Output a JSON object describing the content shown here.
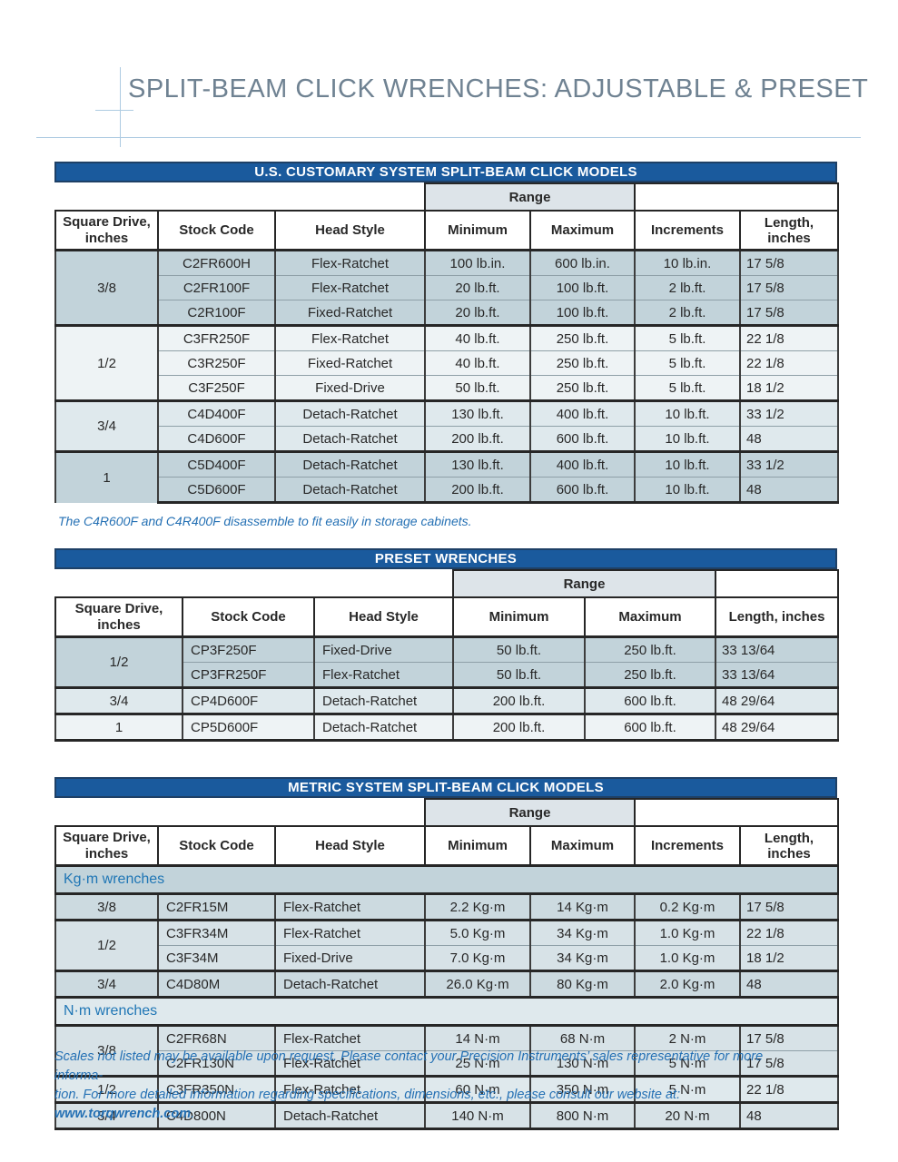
{
  "page": {
    "title": "SPLIT-BEAM CLICK WRENCHES: ADJUSTABLE & PRESET"
  },
  "colors": {
    "banner_blue": "#1a5a9d",
    "accent_blue": "#2470b4",
    "title_gray": "#6f8292",
    "rule_blue": "#aecbe2",
    "header_gray": "#dde4e9",
    "row_dark": "#c2d3da",
    "row_light": "#eef3f5"
  },
  "tables": [
    {
      "banner": "U.S. CUSTOMARY SYSTEM SPLIT-BEAM CLICK MODELS",
      "range_label": "Range",
      "has_increments": true,
      "align": "center",
      "headers": {
        "drive": "Square Drive,\ninches",
        "stock": "Stock Code",
        "head": "Head Style",
        "min": "Minimum",
        "max": "Maximum",
        "inc": "Increments",
        "len": "Length, inches"
      },
      "note": "The C4R600F and C4R400F disassemble to fit easily in storage cabinets.",
      "sections": [
        {
          "label": "",
          "label_shade": "",
          "groups": [
            {
              "drive": "3/8",
              "shade": "dark",
              "rows": [
                {
                  "stock": "C2FR600H",
                  "head": "Flex-Ratchet",
                  "min": "100 lb.in.",
                  "max": "600 lb.in.",
                  "inc": "10 lb.in.",
                  "len": "17 5/8"
                },
                {
                  "stock": "C2FR100F",
                  "head": "Flex-Ratchet",
                  "min": "20 lb.ft.",
                  "max": "100 lb.ft.",
                  "inc": "2 lb.ft.",
                  "len": "17 5/8"
                },
                {
                  "stock": "C2R100F",
                  "head": "Fixed-Ratchet",
                  "min": "20 lb.ft.",
                  "max": "100 lb.ft.",
                  "inc": "2 lb.ft.",
                  "len": "17 5/8"
                }
              ]
            },
            {
              "drive": "1/2",
              "shade": "light",
              "rows": [
                {
                  "stock": "C3FR250F",
                  "head": "Flex-Ratchet",
                  "min": "40 lb.ft.",
                  "max": "250 lb.ft.",
                  "inc": "5 lb.ft.",
                  "len": "22 1/8"
                },
                {
                  "stock": "C3R250F",
                  "head": "Fixed-Ratchet",
                  "min": "40 lb.ft.",
                  "max": "250 lb.ft.",
                  "inc": "5 lb.ft.",
                  "len": "22 1/8"
                },
                {
                  "stock": "C3F250F",
                  "head": "Fixed-Drive",
                  "min": "50 lb.ft.",
                  "max": "250 lb.ft.",
                  "inc": "5 lb.ft.",
                  "len": "18 1/2"
                }
              ]
            },
            {
              "drive": "3/4",
              "shade": "mlight",
              "rows": [
                {
                  "stock": "C4D400F",
                  "head": "Detach-Ratchet",
                  "min": "130 lb.ft.",
                  "max": "400 lb.ft.",
                  "inc": "10 lb.ft.",
                  "len": "33 1/2"
                },
                {
                  "stock": "C4D600F",
                  "head": "Detach-Ratchet",
                  "min": "200 lb.ft.",
                  "max": "600 lb.ft.",
                  "inc": "10 lb.ft.",
                  "len": "48"
                }
              ]
            },
            {
              "drive": "1",
              "shade": "dark",
              "rows": [
                {
                  "stock": "C5D400F",
                  "head": "Detach-Ratchet",
                  "min": "130 lb.ft.",
                  "max": "400 lb.ft.",
                  "inc": "10 lb.ft.",
                  "len": "33 1/2"
                },
                {
                  "stock": "C5D600F",
                  "head": "Detach-Ratchet",
                  "min": "200 lb.ft.",
                  "max": "600 lb.ft.",
                  "inc": "10 lb.ft.",
                  "len": "48"
                }
              ]
            }
          ]
        }
      ]
    },
    {
      "banner": "PRESET WRENCHES",
      "range_label": "Range",
      "has_increments": false,
      "align": "left",
      "headers": {
        "drive": "Square Drive,\ninches",
        "stock": "Stock Code",
        "head": "Head Style",
        "min": "Minimum",
        "max": "Maximum",
        "len": "Length, inches"
      },
      "sections": [
        {
          "label": "",
          "label_shade": "",
          "groups": [
            {
              "drive": "1/2",
              "shade": "dark",
              "rows": [
                {
                  "stock": "CP3F250F",
                  "head": "Fixed-Drive",
                  "min": "50 lb.ft.",
                  "max": "250 lb.ft.",
                  "len": "33 13/64"
                },
                {
                  "stock": "CP3FR250F",
                  "head": "Flex-Ratchet",
                  "min": "50 lb.ft.",
                  "max": "250 lb.ft.",
                  "len": "33 13/64"
                }
              ]
            },
            {
              "drive": "3/4",
              "shade": "mlight",
              "rows": [
                {
                  "stock": "CP4D600F",
                  "head": "Detach-Ratchet",
                  "min": "200 lb.ft.",
                  "max": "600 lb.ft.",
                  "len": "48 29/64"
                }
              ]
            },
            {
              "drive": "1",
              "shade": "light",
              "rows": [
                {
                  "stock": "CP5D600F",
                  "head": "Detach-Ratchet",
                  "min": "200 lb.ft.",
                  "max": "600 lb.ft.",
                  "len": "48 29/64"
                }
              ]
            }
          ]
        }
      ]
    },
    {
      "banner": "METRIC SYSTEM SPLIT-BEAM CLICK MODELS",
      "range_label": "Range",
      "has_increments": true,
      "align": "left",
      "headers": {
        "drive": "Square Drive,\ninches",
        "stock": "Stock Code",
        "head": "Head Style",
        "min": "Minimum",
        "max": "Maximum",
        "inc": "Increments",
        "len": "Length, inches"
      },
      "sections": [
        {
          "label": "Kg·m wrenches",
          "label_shade": "dark",
          "groups": [
            {
              "drive": "3/8",
              "shade": "med",
              "rows": [
                {
                  "stock": "C2FR15M",
                  "head": "Flex-Ratchet",
                  "min": "2.2 Kg·m",
                  "max": "14 Kg·m",
                  "inc": "0.2 Kg·m",
                  "len": "17 5/8"
                }
              ]
            },
            {
              "drive": "1/2",
              "shade": "med2",
              "rows": [
                {
                  "stock": "C3FR34M",
                  "head": "Flex-Ratchet",
                  "min": "5.0 Kg·m",
                  "max": "34 Kg·m",
                  "inc": "1.0 Kg·m",
                  "len": "22 1/8"
                },
                {
                  "stock": "C3F34M",
                  "head": "Fixed-Drive",
                  "min": "7.0 Kg·m",
                  "max": "34 Kg·m",
                  "inc": "1.0 Kg·m",
                  "len": "18 1/2"
                }
              ]
            },
            {
              "drive": "3/4",
              "shade": "med",
              "rows": [
                {
                  "stock": "C4D80M",
                  "head": "Detach-Ratchet",
                  "min": "26.0 Kg·m",
                  "max": "80 Kg·m",
                  "inc": "2.0 Kg·m",
                  "len": "48"
                }
              ]
            }
          ]
        },
        {
          "label": "N·m wrenches",
          "label_shade": "mlight",
          "groups": [
            {
              "drive": "3/8",
              "shade": "med2",
              "rows": [
                {
                  "stock": "C2FR68N",
                  "head": "Flex-Ratchet",
                  "min": "14 N·m",
                  "max": "68 N·m",
                  "inc": "2 N·m",
                  "len": "17 5/8"
                },
                {
                  "stock": "C2FR130N",
                  "head": "Flex-Ratchet",
                  "min": "25 N·m",
                  "max": "130 N·m",
                  "inc": "5 N·m",
                  "len": "17 5/8"
                }
              ]
            },
            {
              "drive": "1/2",
              "shade": "mlight",
              "rows": [
                {
                  "stock": "C3FR350N",
                  "head": "Flex-Ratchet",
                  "min": "60 N·m",
                  "max": "350 N·m",
                  "inc": "5 N·m",
                  "len": "22 1/8"
                }
              ]
            },
            {
              "drive": "3/4",
              "shade": "med2",
              "rows": [
                {
                  "stock": "C4D800N",
                  "head": "Detach-Ratchet",
                  "min": "140 N·m",
                  "max": "800 N·m",
                  "inc": "20 N·m",
                  "len": "48"
                }
              ]
            }
          ]
        }
      ]
    }
  ],
  "footer": {
    "line1": "Scales not listed may be available upon request. Please contact your Precision Instruments’ sales representative for more informa-",
    "line2": "tion. For more detailed information regarding specifications, dimensions, etc., please consult our website at: ",
    "link": "www.torqwrench.com",
    "after": "."
  }
}
